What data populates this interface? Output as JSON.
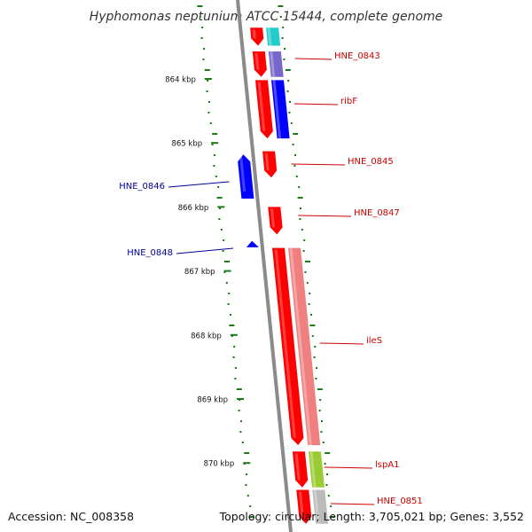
{
  "title": "Hyphomonas neptunium ATCC 15444, complete genome",
  "footer": {
    "accession": "Accession: NC_008358",
    "topology": "Topology: circular; Length: 3,705,021 bp; Genes: 3,552"
  },
  "colors": {
    "backbone": "#8a8a8a",
    "forward_gene": "#ff0000",
    "reverse_gene": "#0000ff",
    "forward_label": "#cc0000",
    "reverse_label": "#000099",
    "gc_ticks": "#1a7a1a",
    "cog_cyan": "#22cccc",
    "cog_purple": "#7766cc",
    "cog_blue": "#0000ff",
    "cog_pink": "#f08080",
    "cog_green": "#99cc33",
    "cog_grey": "#bbbbbb"
  },
  "axis_ticks": [
    {
      "kbp": 864,
      "label": "864 kbp"
    },
    {
      "kbp": 865,
      "label": "865 kbp"
    },
    {
      "kbp": 866,
      "label": "866 kbp"
    },
    {
      "kbp": 867,
      "label": "867 kbp"
    },
    {
      "kbp": 868,
      "label": "868 kbp"
    },
    {
      "kbp": 869,
      "label": "869 kbp"
    },
    {
      "kbp": 870,
      "label": "870 kbp"
    }
  ],
  "genes": [
    {
      "id": "gene-top",
      "label": "",
      "strand": 1,
      "start_kbp": 863.2,
      "end_kbp": 863.48,
      "cog": "cyan"
    },
    {
      "id": "HNE_0843",
      "label": "HNE_0843",
      "strand": 1,
      "start_kbp": 863.57,
      "end_kbp": 863.97,
      "cog": "purple"
    },
    {
      "id": "ribF",
      "label": "ribF",
      "strand": 1,
      "start_kbp": 864.02,
      "end_kbp": 864.93,
      "cog": "blue"
    },
    {
      "id": "HNE_0845",
      "label": "HNE_0845",
      "strand": 1,
      "start_kbp": 865.13,
      "end_kbp": 865.54,
      "cog": ""
    },
    {
      "id": "HNE_0846",
      "label": "HNE_0846",
      "strand": -1,
      "start_kbp": 865.18,
      "end_kbp": 865.87,
      "cog": ""
    },
    {
      "id": "HNE_0847",
      "label": "HNE_0847",
      "strand": 1,
      "start_kbp": 866.0,
      "end_kbp": 866.43,
      "cog": ""
    },
    {
      "id": "HNE_0848",
      "label": "HNE_0848",
      "strand": -1,
      "start_kbp": 866.53,
      "end_kbp": 866.63,
      "cog": ""
    },
    {
      "id": "ileS",
      "label": "ileS",
      "strand": 1,
      "start_kbp": 866.64,
      "end_kbp": 869.72,
      "cog": "pink"
    },
    {
      "id": "lspA1",
      "label": "lspA1",
      "strand": 1,
      "start_kbp": 869.82,
      "end_kbp": 870.38,
      "cog": "green"
    },
    {
      "id": "HNE_0851",
      "label": "HNE_0851",
      "strand": 1,
      "start_kbp": 870.42,
      "end_kbp": 870.95,
      "cog": "grey"
    }
  ]
}
